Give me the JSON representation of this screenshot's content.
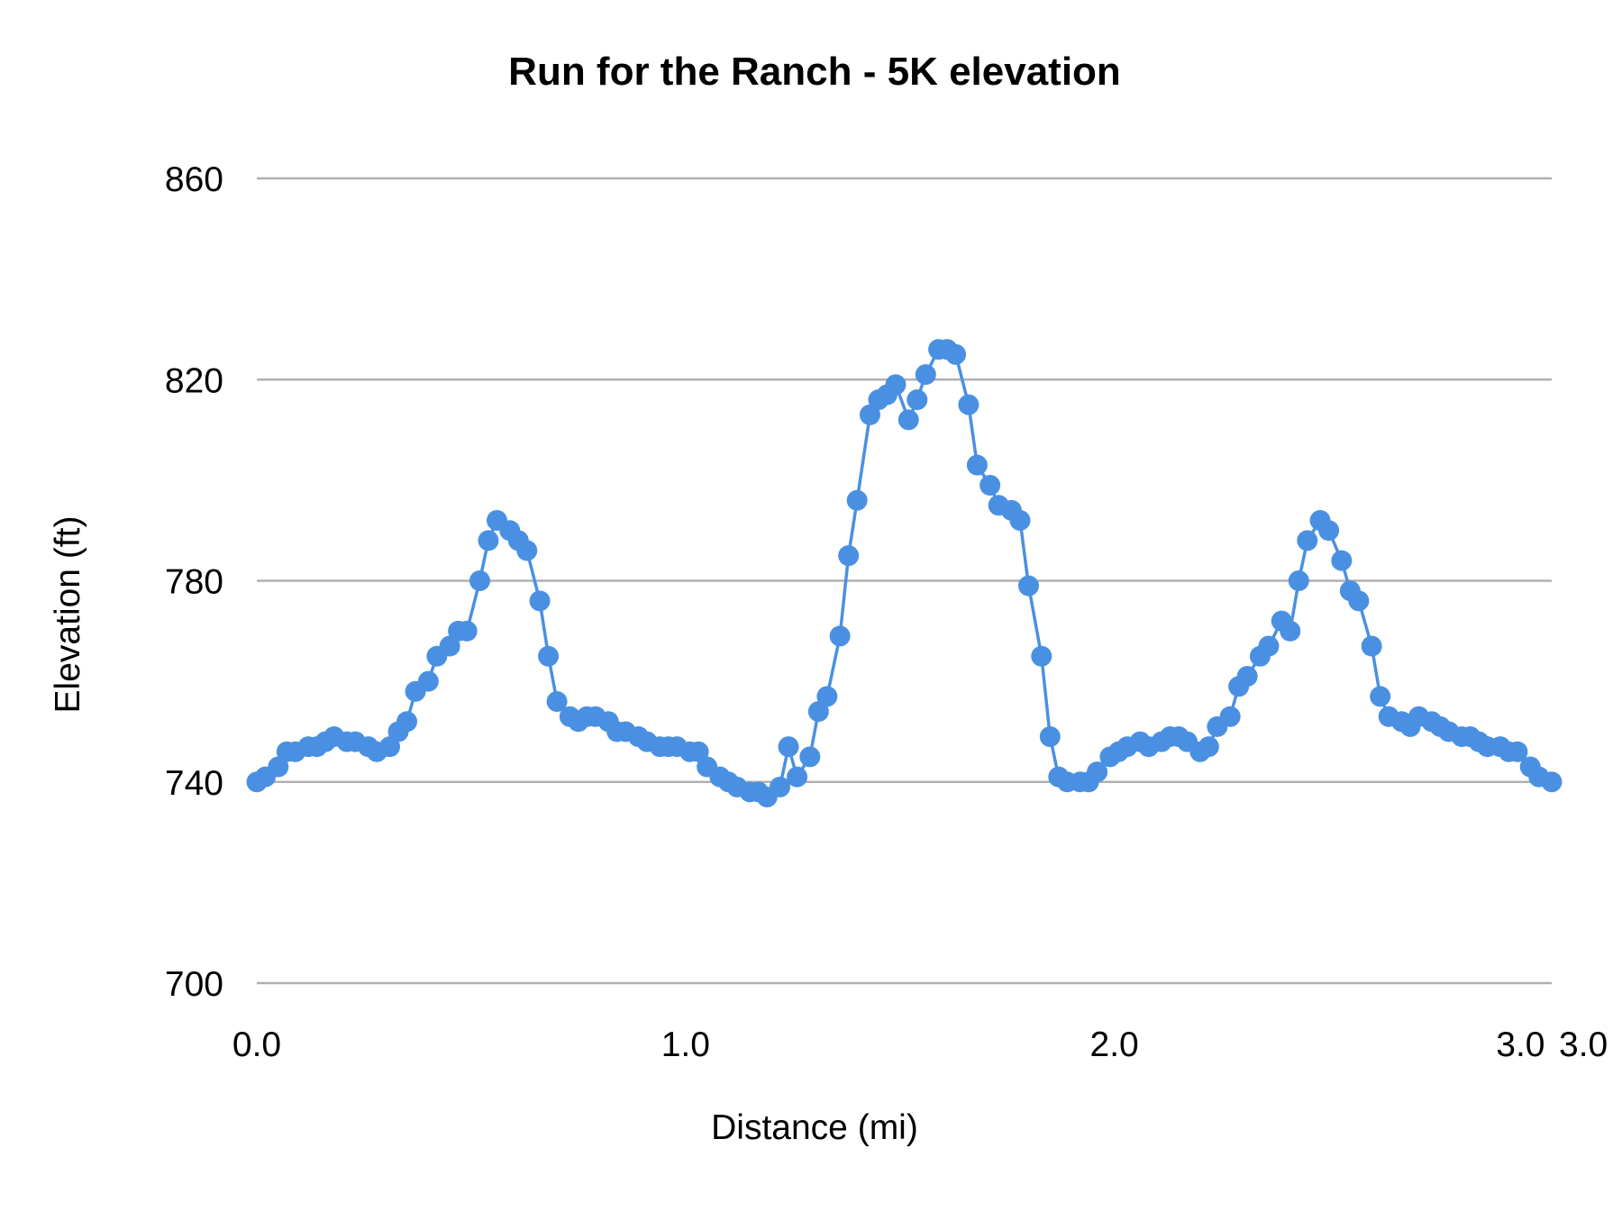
{
  "chart_data": {
    "type": "line",
    "title": "Run for the Ranch - 5K elevation",
    "xlabel": "Distance (mi)",
    "ylabel": "Elevation (ft)",
    "xlim": [
      0,
      3.02
    ],
    "ylim": [
      700,
      860
    ],
    "x_ticks": [
      0.0,
      1.0,
      2.0,
      3.0,
      3.02
    ],
    "x_tick_labels": [
      "0.0",
      "1.0",
      "2.0",
      "3.0",
      "3.0"
    ],
    "y_ticks": [
      700,
      740,
      780,
      820,
      860
    ],
    "y_tick_labels": [
      "700",
      "740",
      "780",
      "820",
      "860"
    ],
    "grid": "horizontal",
    "legend": "none",
    "markers": true,
    "colors": {
      "series": "#4a90e2",
      "grid": "#b0b0b0"
    },
    "series": [
      {
        "x": [
          0.0,
          0.02,
          0.05,
          0.07,
          0.09,
          0.12,
          0.14,
          0.16,
          0.18,
          0.21,
          0.23,
          0.26,
          0.28,
          0.31,
          0.33,
          0.35,
          0.37,
          0.4,
          0.42,
          0.45,
          0.47,
          0.49,
          0.52,
          0.54,
          0.56,
          0.59,
          0.61,
          0.63,
          0.66,
          0.68,
          0.7,
          0.73,
          0.75,
          0.77,
          0.79,
          0.82,
          0.84,
          0.86,
          0.89,
          0.91,
          0.94,
          0.96,
          0.98,
          1.01,
          1.03,
          1.05,
          1.08,
          1.1,
          1.12,
          1.15,
          1.17,
          1.19,
          1.22,
          1.24,
          1.26,
          1.29,
          1.31,
          1.33,
          1.36,
          1.38,
          1.4,
          1.43,
          1.45,
          1.47,
          1.49,
          1.52,
          1.54,
          1.56,
          1.59,
          1.61,
          1.63,
          1.66,
          1.68,
          1.71,
          1.73,
          1.76,
          1.78,
          1.8,
          1.83,
          1.85,
          1.87,
          1.89,
          1.92,
          1.94,
          1.96,
          1.99,
          2.01,
          2.03,
          2.06,
          2.08,
          2.11,
          2.13,
          2.15,
          2.17,
          2.2,
          2.22,
          2.24,
          2.27,
          2.29,
          2.31,
          2.34,
          2.36,
          2.39,
          2.41,
          2.43,
          2.45,
          2.48,
          2.5,
          2.53,
          2.55,
          2.57,
          2.6,
          2.62,
          2.64,
          2.67,
          2.69,
          2.71,
          2.74,
          2.76,
          2.78,
          2.81,
          2.83,
          2.85,
          2.87,
          2.9,
          2.92,
          2.94,
          2.97,
          2.99,
          3.02
        ],
        "y": [
          740,
          741,
          743,
          746,
          746,
          747,
          747,
          748,
          749,
          748,
          748,
          747,
          746,
          747,
          750,
          752,
          758,
          760,
          765,
          767,
          770,
          770,
          780,
          788,
          792,
          790,
          788,
          786,
          776,
          765,
          756,
          753,
          752,
          753,
          753,
          752,
          750,
          750,
          749,
          748,
          747,
          747,
          747,
          746,
          746,
          743,
          741,
          740,
          739,
          738,
          738,
          737,
          739,
          747,
          741,
          745,
          754,
          757,
          769,
          785,
          796,
          813,
          816,
          817,
          819,
          812,
          816,
          821,
          826,
          826,
          825,
          815,
          803,
          799,
          795,
          794,
          792,
          779,
          765,
          749,
          741,
          740,
          740,
          740,
          742,
          745,
          746,
          747,
          748,
          747,
          748,
          749,
          749,
          748,
          746,
          747,
          751,
          753,
          759,
          761,
          765,
          767,
          772,
          770,
          780,
          788,
          792,
          790,
          784,
          778,
          776,
          767,
          757,
          753,
          752,
          751,
          753,
          752,
          751,
          750,
          749,
          749,
          748,
          747,
          747,
          746,
          746,
          743,
          741,
          740
        ]
      }
    ]
  }
}
